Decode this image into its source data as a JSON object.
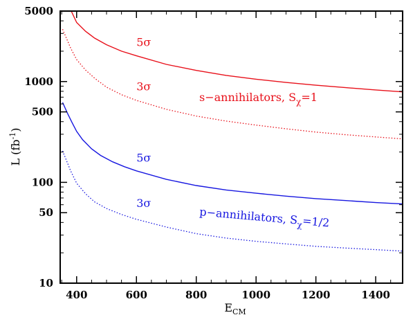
{
  "chart_data": {
    "type": "line",
    "xlabel_main": "E",
    "xlabel_sub": "CM",
    "ylabel_main": "L (fb",
    "ylabel_sup": "-1",
    "ylabel_end": ")",
    "xlim": [
      345,
      1490
    ],
    "ylim": [
      10,
      5000
    ],
    "yscale": "log",
    "grid": false,
    "x_ticks": [
      400,
      600,
      800,
      1000,
      1200,
      1400
    ],
    "x_tick_labels": [
      "400",
      "600",
      "800",
      "1000",
      "1200",
      "1400"
    ],
    "y_ticks": [
      10,
      50,
      100,
      500,
      1000,
      5000
    ],
    "y_tick_labels": [
      "10",
      "50",
      "100",
      "500",
      "1000",
      "5000"
    ],
    "series": [
      {
        "style": "solid",
        "color": "#e8101a",
        "x": [
          382,
          400,
          430,
          460,
          500,
          550,
          600,
          700,
          800,
          900,
          1000,
          1100,
          1200,
          1300,
          1400,
          1490
        ],
        "y": [
          5000,
          3850,
          3150,
          2700,
          2320,
          2000,
          1800,
          1480,
          1290,
          1150,
          1055,
          980,
          920,
          870,
          825,
          790
        ]
      },
      {
        "style": "dotted",
        "color": "#e8101a",
        "x": [
          353,
          380,
          400,
          430,
          460,
          500,
          550,
          600,
          700,
          800,
          900,
          1000,
          1100,
          1200,
          1300,
          1400,
          1490
        ],
        "y": [
          3300,
          2150,
          1650,
          1300,
          1080,
          880,
          740,
          650,
          530,
          455,
          405,
          370,
          340,
          315,
          297,
          282,
          270
        ]
      },
      {
        "style": "solid",
        "color": "#1616e0",
        "x": [
          353,
          370,
          385,
          400,
          420,
          450,
          480,
          520,
          560,
          600,
          700,
          800,
          900,
          1000,
          1100,
          1200,
          1300,
          1400,
          1490
        ],
        "y": [
          620,
          480,
          390,
          320,
          265,
          215,
          185,
          160,
          143,
          130,
          107,
          93,
          84,
          78,
          73,
          69,
          66,
          63,
          61
        ]
      },
      {
        "style": "dotted",
        "color": "#1616e0",
        "x": [
          353,
          380,
          400,
          430,
          460,
          500,
          550,
          600,
          700,
          800,
          900,
          1000,
          1100,
          1200,
          1300,
          1400,
          1490
        ],
        "y": [
          205,
          130,
          98,
          77,
          64,
          55,
          48,
          43,
          36,
          31,
          28,
          26,
          24.5,
          23.2,
          22.3,
          21.5,
          20.8
        ]
      }
    ],
    "annotations": [
      {
        "text": "5σ",
        "x": 600,
        "y": 2250,
        "color": "#e8101a"
      },
      {
        "text": "3σ",
        "x": 600,
        "y": 820,
        "color": "#e8101a"
      },
      {
        "prefix": "s−annihilators, S",
        "sub": "χ",
        "suffix": "=1",
        "x": 810,
        "y": 640,
        "color": "#e8101a"
      },
      {
        "text": "5σ",
        "x": 600,
        "y": 160,
        "color": "#1616e0"
      },
      {
        "text": "3σ",
        "x": 600,
        "y": 57,
        "color": "#1616e0"
      },
      {
        "prefix": "p−annihilators, S",
        "sub": "χ",
        "suffix": "=1/2",
        "x": 810,
        "y": 47,
        "color": "#1616e0",
        "rotate": 5
      }
    ]
  }
}
